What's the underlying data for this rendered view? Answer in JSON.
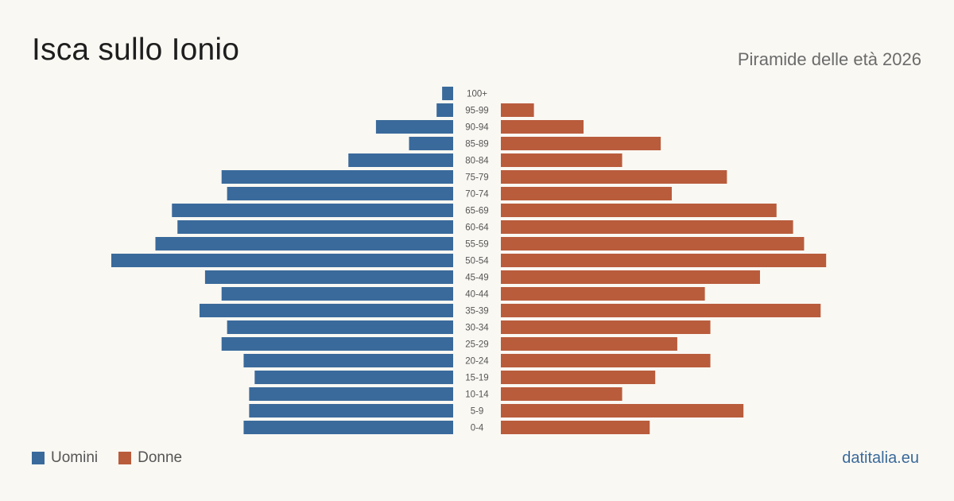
{
  "header": {
    "title": "Isca sullo Ionio",
    "subtitle": "Piramide delle età 2026"
  },
  "legend": {
    "men_label": "Uomini",
    "women_label": "Donne"
  },
  "footer": {
    "source": "datitalia.eu"
  },
  "colors": {
    "men": "#3a6a9b",
    "women": "#b95c3c",
    "age_label": "#555555"
  },
  "chart_data": {
    "type": "bar",
    "orientation": "horizontal-pyramid",
    "categories": [
      "100+",
      "95-99",
      "90-94",
      "85-89",
      "80-84",
      "75-79",
      "70-74",
      "65-69",
      "60-64",
      "55-59",
      "50-54",
      "45-49",
      "40-44",
      "35-39",
      "30-34",
      "25-29",
      "20-24",
      "15-19",
      "10-14",
      "5-9",
      "0-4"
    ],
    "series": [
      {
        "name": "Uomini",
        "values": [
          2,
          3,
          14,
          8,
          19,
          42,
          41,
          51,
          50,
          54,
          62,
          45,
          42,
          46,
          41,
          42,
          38,
          36,
          37,
          37,
          38
        ]
      },
      {
        "name": "Donne",
        "values": [
          0,
          6,
          15,
          29,
          22,
          41,
          31,
          50,
          53,
          55,
          59,
          47,
          37,
          58,
          38,
          32,
          38,
          28,
          22,
          44,
          27
        ]
      }
    ],
    "xlim": [
      0,
      62
    ],
    "grid": false,
    "legend_position": "bottom-left"
  }
}
